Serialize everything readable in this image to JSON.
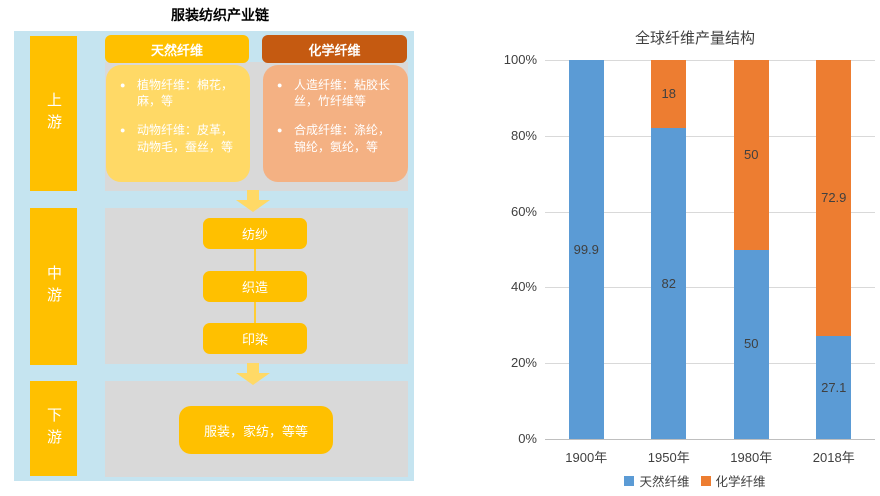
{
  "colors": {
    "gold": "#FFC000",
    "light-gold": "#FFD966",
    "dark-orange": "#C55A11",
    "salmon": "#F4B183",
    "panel-gray": "#D9D9D9",
    "bg-blue": "#C5E4F0",
    "arrow": "#FFD966",
    "connector": "#FFCD33",
    "text-dark": "#404040",
    "grid": "#D9D9D9",
    "axis": "#BFBFBF"
  },
  "diagram": {
    "title": "服装纺织产业链",
    "stages": [
      {
        "label": "上游"
      },
      {
        "label": "中游"
      },
      {
        "label": "下游"
      }
    ],
    "upstream": {
      "natural": {
        "header": "天然纤维",
        "items": [
          "植物纤维：棉花，麻，等",
          "动物纤维：皮革，动物毛，蚕丝，等"
        ]
      },
      "chemical": {
        "header": "化学纤维",
        "items": [
          "人造纤维：粘胶长丝，竹纤维等",
          "合成纤维：涤纶，锦纶，氨纶，等"
        ]
      }
    },
    "midstream_steps": [
      "纺纱",
      "织造",
      "印染"
    ],
    "downstream_box": "服装，家纺，等等"
  },
  "chart_data": {
    "type": "bar",
    "stacked": true,
    "title": "全球纤维产量结构",
    "categories": [
      "1900年",
      "1950年",
      "1980年",
      "2018年"
    ],
    "series": [
      {
        "name": "天然纤维",
        "color": "#5B9BD5",
        "values": [
          99.9,
          82,
          50,
          27.1
        ],
        "labels": [
          "99.9",
          "82",
          "50",
          "27.1"
        ]
      },
      {
        "name": "化学纤维",
        "color": "#ED7D31",
        "values": [
          0.1,
          18,
          50,
          72.9
        ],
        "labels": [
          "",
          "18",
          "50",
          "72.9"
        ]
      }
    ],
    "ylim": [
      0,
      100
    ],
    "ytick_labels": [
      "0%",
      "20%",
      "40%",
      "60%",
      "80%",
      "100%"
    ],
    "grid": true,
    "legend_position": "bottom"
  }
}
